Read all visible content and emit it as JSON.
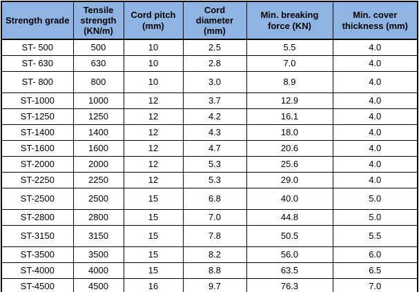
{
  "table": {
    "columns": [
      {
        "label": "Strength grade"
      },
      {
        "label": "Tensile strength (KN/m)"
      },
      {
        "label": "Cord pitch (mm)"
      },
      {
        "label": "Cord diameter (mm)"
      },
      {
        "label": "Min. breaking force (KN)"
      },
      {
        "label": "Min. cover thickness (mm)"
      }
    ],
    "rows": [
      [
        "ST- 500",
        "500",
        "10",
        "2.5",
        "5.5",
        "4.0"
      ],
      [
        "ST- 630",
        "630",
        "10",
        "2.8",
        "7.0",
        "4.0"
      ],
      [
        "ST- 800",
        "800",
        "10",
        "3.0",
        "8.9",
        "4.0"
      ],
      [
        "ST-1000",
        "1000",
        "12",
        "3.7",
        "12.9",
        "4.0"
      ],
      [
        "ST-1250",
        "1250",
        "12",
        "4.2",
        "16.1",
        "4.0"
      ],
      [
        "ST-1400",
        "1400",
        "12",
        "4.3",
        "18.0",
        "4.0"
      ],
      [
        "ST-1600",
        "1600",
        "12",
        "4.7",
        "20.6",
        "4.0"
      ],
      [
        "ST-2000",
        "2000",
        "12",
        "5.3",
        "25.6",
        "4.0"
      ],
      [
        "ST-2250",
        "2250",
        "12",
        "5.3",
        "29.0",
        "4.0"
      ],
      [
        "ST-2500",
        "2500",
        "15",
        "6.8",
        "40.0",
        "5.0"
      ],
      [
        "ST-2800",
        "2800",
        "15",
        "7.0",
        "44.8",
        "5.0"
      ],
      [
        "ST-3150",
        "3150",
        "15",
        "7.8",
        "50.5",
        "5.5"
      ],
      [
        "ST-3500",
        "3500",
        "15",
        "8.2",
        "56.0",
        "6.0"
      ],
      [
        "ST-4000",
        "4000",
        "15",
        "8.8",
        "63.5",
        "6.5"
      ],
      [
        "ST-4500",
        "4500",
        "16",
        "9.7",
        "76.3",
        "7.0"
      ]
    ]
  },
  "colors": {
    "header_bg": "#8DB4E2",
    "border": "#000000",
    "text": "#000000",
    "row_bg": "#FFFFFF"
  }
}
